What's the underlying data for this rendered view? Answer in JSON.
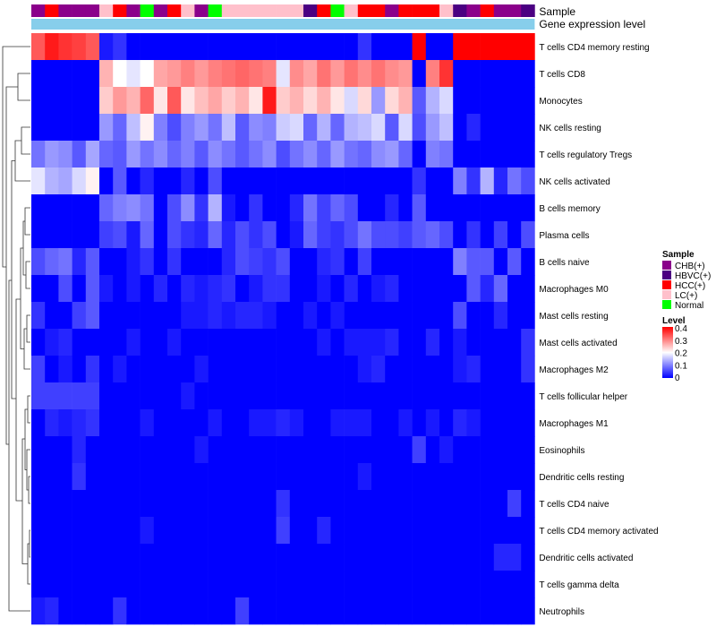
{
  "chart_data": {
    "type": "heatmap",
    "title": "",
    "annotation_labels": {
      "sample": "Sample",
      "expression": "Gene expression level"
    },
    "sample_colors": {
      "CHB(+)": "#8B008B",
      "HBVC(+)": "#4B0082",
      "HCC(+)": "#FF0000",
      "LC(+)": "#FFC0CB",
      "Normal": "#00FF00"
    },
    "samples": [
      "CHB(+)",
      "HCC(+)",
      "CHB(+)",
      "CHB(+)",
      "CHB(+)",
      "LC(+)",
      "HCC(+)",
      "CHB(+)",
      "Normal",
      "CHB(+)",
      "HCC(+)",
      "LC(+)",
      "CHB(+)",
      "Normal",
      "LC(+)",
      "LC(+)",
      "LC(+)",
      "LC(+)",
      "LC(+)",
      "LC(+)",
      "HBVC(+)",
      "HCC(+)",
      "Normal",
      "LC(+)",
      "HCC(+)",
      "HCC(+)",
      "CHB(+)",
      "HCC(+)",
      "HCC(+)",
      "HCC(+)",
      "LC(+)",
      "HBVC(+)",
      "CHB(+)",
      "HCC(+)",
      "CHB(+)",
      "CHB(+)",
      "HBVC(+)"
    ],
    "expression_color": "#87CEEB",
    "rows": [
      "T cells CD4 memory resting",
      "T cells CD8",
      "Monocytes",
      "NK cells resting",
      "T cells regulatory  Tregs",
      "NK cells activated",
      "B cells memory",
      "Plasma cells",
      "B cells naive",
      "Macrophages M0",
      "Mast cells resting",
      "Mast cells activated",
      "Macrophages M2",
      "T cells follicular helper",
      "Macrophages M1",
      "Eosinophils",
      "Dendritic cells resting",
      "T cells CD4 naive",
      "T cells CD4 memory activated",
      "Dendritic cells activated",
      "T cells gamma delta",
      "Neutrophils"
    ],
    "values": [
      [
        0.33,
        0.38,
        0.36,
        0.35,
        0.33,
        0.02,
        0.04,
        0.0,
        0.0,
        0.0,
        0.0,
        0.0,
        0.0,
        0.0,
        0.0,
        0.0,
        0.0,
        0.0,
        0.0,
        0.0,
        0.0,
        0.0,
        0.0,
        0.0,
        0.04,
        0.0,
        0.0,
        0.0,
        0.4,
        0.0,
        0.0,
        0.4,
        0.4,
        0.4,
        0.4,
        0.4,
        0.4
      ],
      [
        0.0,
        0.0,
        0.0,
        0.0,
        0.0,
        0.26,
        0.2,
        0.18,
        0.2,
        0.27,
        0.28,
        0.3,
        0.28,
        0.3,
        0.31,
        0.32,
        0.31,
        0.3,
        0.18,
        0.29,
        0.27,
        0.31,
        0.28,
        0.31,
        0.29,
        0.31,
        0.29,
        0.28,
        0.0,
        0.3,
        0.36,
        0.0,
        0.0,
        0.0,
        0.0,
        0.0,
        0.0
      ],
      [
        0.0,
        0.0,
        0.0,
        0.0,
        0.0,
        0.24,
        0.28,
        0.26,
        0.32,
        0.22,
        0.33,
        0.22,
        0.25,
        0.27,
        0.24,
        0.26,
        0.22,
        0.38,
        0.24,
        0.26,
        0.23,
        0.26,
        0.22,
        0.17,
        0.23,
        0.12,
        0.23,
        0.26,
        0.07,
        0.14,
        0.17,
        0.0,
        0.0,
        0.0,
        0.0,
        0.0,
        0.0
      ],
      [
        0.0,
        0.0,
        0.0,
        0.0,
        0.0,
        0.12,
        0.08,
        0.15,
        0.21,
        0.1,
        0.06,
        0.1,
        0.12,
        0.09,
        0.15,
        0.07,
        0.11,
        0.1,
        0.16,
        0.17,
        0.08,
        0.14,
        0.08,
        0.14,
        0.15,
        0.17,
        0.07,
        0.17,
        0.06,
        0.12,
        0.15,
        0.0,
        0.03,
        0.0,
        0.0,
        0.0,
        0.0
      ],
      [
        0.09,
        0.12,
        0.11,
        0.07,
        0.13,
        0.08,
        0.07,
        0.12,
        0.09,
        0.11,
        0.08,
        0.1,
        0.07,
        0.11,
        0.09,
        0.07,
        0.09,
        0.11,
        0.06,
        0.09,
        0.11,
        0.08,
        0.12,
        0.09,
        0.08,
        0.11,
        0.12,
        0.08,
        0.0,
        0.1,
        0.09,
        0.0,
        0.0,
        0.0,
        0.0,
        0.0,
        0.0
      ],
      [
        0.18,
        0.14,
        0.13,
        0.17,
        0.21,
        0.0,
        0.07,
        0.0,
        0.03,
        0.0,
        0.0,
        0.03,
        0.0,
        0.06,
        0.0,
        0.0,
        0.0,
        0.0,
        0.0,
        0.0,
        0.0,
        0.0,
        0.0,
        0.0,
        0.0,
        0.0,
        0.0,
        0.0,
        0.04,
        0.0,
        0.0,
        0.1,
        0.04,
        0.14,
        0.03,
        0.09,
        0.06
      ],
      [
        0.0,
        0.0,
        0.0,
        0.0,
        0.0,
        0.08,
        0.1,
        0.11,
        0.09,
        0.0,
        0.06,
        0.11,
        0.04,
        0.14,
        0.02,
        0.0,
        0.04,
        0.0,
        0.0,
        0.03,
        0.09,
        0.05,
        0.08,
        0.06,
        0.0,
        0.0,
        0.03,
        0.0,
        0.07,
        0.0,
        0.0,
        0.0,
        0.0,
        0.0,
        0.0,
        0.0,
        0.0
      ],
      [
        0.0,
        0.0,
        0.0,
        0.0,
        0.0,
        0.05,
        0.06,
        0.02,
        0.08,
        0.0,
        0.06,
        0.04,
        0.03,
        0.08,
        0.03,
        0.06,
        0.04,
        0.06,
        0.0,
        0.02,
        0.08,
        0.05,
        0.04,
        0.06,
        0.09,
        0.06,
        0.06,
        0.05,
        0.07,
        0.08,
        0.06,
        0.0,
        0.04,
        0.0,
        0.05,
        0.0,
        0.06
      ],
      [
        0.06,
        0.08,
        0.09,
        0.03,
        0.07,
        0.0,
        0.0,
        0.02,
        0.04,
        0.0,
        0.04,
        0.0,
        0.0,
        0.0,
        0.03,
        0.06,
        0.05,
        0.04,
        0.06,
        0.0,
        0.0,
        0.03,
        0.04,
        0.0,
        0.05,
        0.0,
        0.0,
        0.0,
        0.0,
        0.0,
        0.0,
        0.1,
        0.07,
        0.07,
        0.0,
        0.07,
        0.0
      ],
      [
        0.0,
        0.0,
        0.06,
        0.0,
        0.07,
        0.02,
        0.0,
        0.02,
        0.0,
        0.03,
        0.0,
        0.03,
        0.02,
        0.03,
        0.04,
        0.0,
        0.02,
        0.04,
        0.04,
        0.0,
        0.0,
        0.02,
        0.0,
        0.03,
        0.0,
        0.02,
        0.03,
        0.0,
        0.0,
        0.0,
        0.0,
        0.0,
        0.07,
        0.03,
        0.08,
        0.0,
        0.0
      ],
      [
        0.04,
        0.0,
        0.0,
        0.05,
        0.07,
        0.0,
        0.0,
        0.0,
        0.0,
        0.0,
        0.0,
        0.02,
        0.02,
        0.03,
        0.02,
        0.03,
        0.03,
        0.02,
        0.0,
        0.0,
        0.02,
        0.0,
        0.02,
        0.0,
        0.0,
        0.0,
        0.0,
        0.0,
        0.0,
        0.0,
        0.0,
        0.06,
        0.0,
        0.0,
        0.03,
        0.0,
        0.0
      ],
      [
        0.0,
        0.02,
        0.03,
        0.0,
        0.0,
        0.0,
        0.0,
        0.02,
        0.0,
        0.0,
        0.02,
        0.0,
        0.0,
        0.0,
        0.0,
        0.0,
        0.0,
        0.0,
        0.0,
        0.0,
        0.0,
        0.02,
        0.0,
        0.02,
        0.02,
        0.02,
        0.03,
        0.0,
        0.0,
        0.03,
        0.0,
        0.02,
        0.0,
        0.0,
        0.0,
        0.0,
        0.04
      ],
      [
        0.05,
        0.0,
        0.02,
        0.0,
        0.04,
        0.0,
        0.02,
        0.0,
        0.0,
        0.0,
        0.0,
        0.0,
        0.02,
        0.0,
        0.0,
        0.0,
        0.0,
        0.0,
        0.0,
        0.0,
        0.0,
        0.0,
        0.0,
        0.0,
        0.02,
        0.03,
        0.0,
        0.0,
        0.0,
        0.0,
        0.0,
        0.02,
        0.03,
        0.0,
        0.0,
        0.0,
        0.04
      ],
      [
        0.05,
        0.05,
        0.05,
        0.05,
        0.05,
        0.0,
        0.0,
        0.0,
        0.0,
        0.0,
        0.0,
        0.02,
        0.0,
        0.0,
        0.0,
        0.0,
        0.0,
        0.0,
        0.0,
        0.0,
        0.0,
        0.0,
        0.0,
        0.0,
        0.0,
        0.0,
        0.0,
        0.0,
        0.0,
        0.0,
        0.0,
        0.0,
        0.0,
        0.0,
        0.0,
        0.0,
        0.0
      ],
      [
        0.0,
        0.03,
        0.02,
        0.03,
        0.04,
        0.0,
        0.0,
        0.0,
        0.02,
        0.0,
        0.0,
        0.0,
        0.0,
        0.02,
        0.0,
        0.0,
        0.02,
        0.02,
        0.03,
        0.02,
        0.0,
        0.0,
        0.02,
        0.02,
        0.02,
        0.0,
        0.0,
        0.02,
        0.0,
        0.02,
        0.0,
        0.03,
        0.02,
        0.0,
        0.0,
        0.0,
        0.0
      ],
      [
        0.0,
        0.0,
        0.0,
        0.03,
        0.0,
        0.0,
        0.0,
        0.0,
        0.0,
        0.0,
        0.0,
        0.0,
        0.02,
        0.0,
        0.0,
        0.0,
        0.0,
        0.0,
        0.0,
        0.0,
        0.0,
        0.0,
        0.0,
        0.0,
        0.0,
        0.0,
        0.0,
        0.0,
        0.05,
        0.0,
        0.02,
        0.0,
        0.0,
        0.0,
        0.0,
        0.0,
        0.0
      ],
      [
        0.0,
        0.0,
        0.0,
        0.04,
        0.0,
        0.0,
        0.0,
        0.0,
        0.0,
        0.0,
        0.0,
        0.0,
        0.0,
        0.0,
        0.0,
        0.0,
        0.0,
        0.0,
        0.0,
        0.0,
        0.0,
        0.0,
        0.0,
        0.0,
        0.02,
        0.0,
        0.0,
        0.0,
        0.0,
        0.0,
        0.0,
        0.0,
        0.0,
        0.0,
        0.0,
        0.0,
        0.0
      ],
      [
        0.0,
        0.0,
        0.0,
        0.0,
        0.0,
        0.0,
        0.0,
        0.0,
        0.0,
        0.0,
        0.0,
        0.0,
        0.0,
        0.0,
        0.0,
        0.0,
        0.0,
        0.0,
        0.04,
        0.0,
        0.0,
        0.0,
        0.0,
        0.0,
        0.0,
        0.0,
        0.0,
        0.0,
        0.0,
        0.0,
        0.0,
        0.0,
        0.0,
        0.0,
        0.0,
        0.05,
        0.0
      ],
      [
        0.0,
        0.0,
        0.0,
        0.0,
        0.0,
        0.0,
        0.0,
        0.0,
        0.02,
        0.0,
        0.0,
        0.0,
        0.0,
        0.0,
        0.0,
        0.0,
        0.0,
        0.0,
        0.05,
        0.0,
        0.0,
        0.03,
        0.0,
        0.0,
        0.0,
        0.0,
        0.0,
        0.0,
        0.0,
        0.0,
        0.0,
        0.0,
        0.0,
        0.0,
        0.0,
        0.0,
        0.0
      ],
      [
        0.0,
        0.0,
        0.0,
        0.0,
        0.0,
        0.0,
        0.0,
        0.0,
        0.0,
        0.0,
        0.0,
        0.0,
        0.0,
        0.0,
        0.0,
        0.0,
        0.0,
        0.0,
        0.0,
        0.0,
        0.0,
        0.0,
        0.0,
        0.0,
        0.0,
        0.0,
        0.0,
        0.0,
        0.0,
        0.0,
        0.0,
        0.0,
        0.0,
        0.0,
        0.03,
        0.03,
        0.0
      ],
      [
        0.0,
        0.0,
        0.0,
        0.0,
        0.0,
        0.0,
        0.0,
        0.0,
        0.0,
        0.0,
        0.0,
        0.0,
        0.0,
        0.0,
        0.0,
        0.0,
        0.0,
        0.0,
        0.0,
        0.0,
        0.0,
        0.0,
        0.0,
        0.0,
        0.0,
        0.0,
        0.0,
        0.0,
        0.0,
        0.0,
        0.0,
        0.0,
        0.0,
        0.0,
        0.0,
        0.0,
        0.0
      ],
      [
        0.02,
        0.03,
        0.0,
        0.0,
        0.0,
        0.0,
        0.04,
        0.0,
        0.0,
        0.0,
        0.0,
        0.0,
        0.0,
        0.0,
        0.0,
        0.05,
        0.0,
        0.0,
        0.0,
        0.0,
        0.0,
        0.0,
        0.0,
        0.0,
        0.0,
        0.0,
        0.0,
        0.0,
        0.0,
        0.0,
        0.0,
        0.0,
        0.0,
        0.0,
        0.0,
        0.0,
        0.0
      ]
    ],
    "color_scale": {
      "min": 0,
      "mid": 0.2,
      "max": 0.4,
      "low": "#0000FF",
      "midcolor": "#FFFFFF",
      "high": "#FF0000"
    },
    "legend": {
      "sample_title": "Sample",
      "sample_entries": [
        "CHB(+)",
        "HBVC(+)",
        "HCC(+)",
        "LC(+)",
        "Normal"
      ],
      "level_title": "Level",
      "level_ticks": [
        "0.4",
        "0.3",
        "0.2",
        "0.1",
        "0"
      ]
    },
    "row_dendrogram": true
  }
}
